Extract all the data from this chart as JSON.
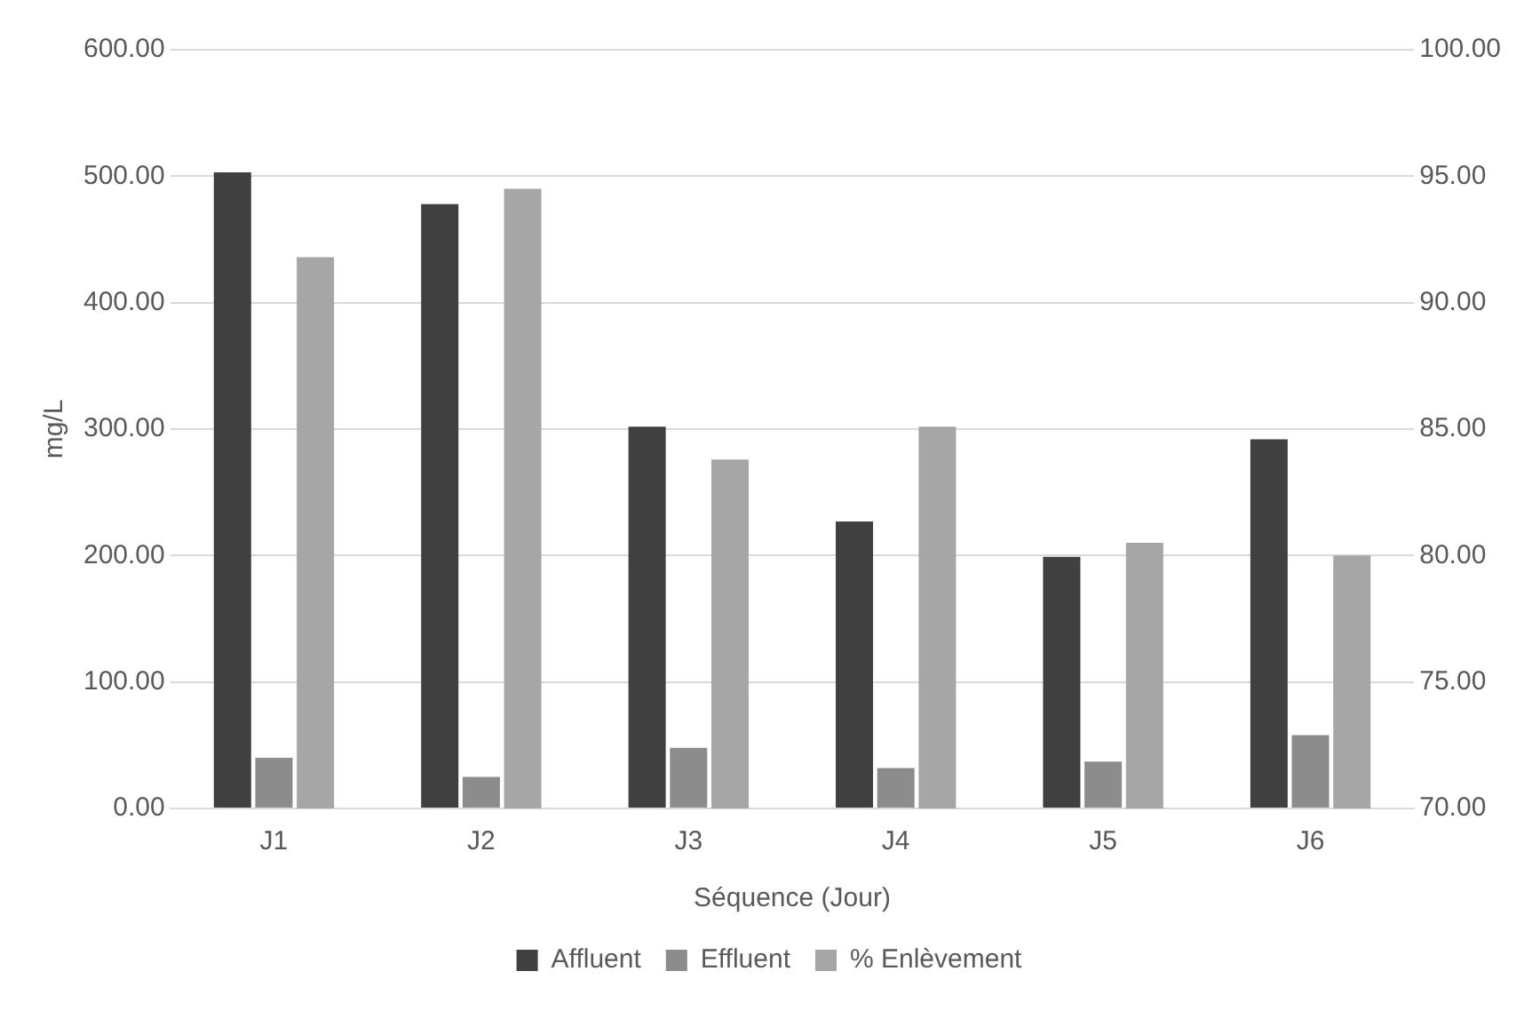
{
  "chart_data": {
    "type": "bar",
    "xlabel": "Séquence (Jour)",
    "ylabel": "mg/L",
    "categories": [
      "J1",
      "J2",
      "J3",
      "J4",
      "J5",
      "J6"
    ],
    "series": [
      {
        "name": "Affluent",
        "color": "#404040",
        "values": [
          503,
          478,
          302,
          227,
          199,
          292
        ]
      },
      {
        "name": "Effluent",
        "color": "#8c8c8c",
        "values": [
          40,
          25,
          48,
          32,
          37,
          58
        ]
      },
      {
        "name": "% Enlèvement",
        "color": "#a6a6a6",
        "axis": "y2",
        "values": [
          91.8,
          94.5,
          83.8,
          85.1,
          80.5,
          80.0
        ]
      }
    ],
    "ylim": [
      0,
      600
    ],
    "yticks": [
      {
        "value": 0,
        "label": "0.00"
      },
      {
        "value": 100,
        "label": "100.00"
      },
      {
        "value": 200,
        "label": "200.00"
      },
      {
        "value": 300,
        "label": "300.00"
      },
      {
        "value": 400,
        "label": "400.00"
      },
      {
        "value": 500,
        "label": "500.00"
      },
      {
        "value": 600,
        "label": "600.00"
      }
    ],
    "y2lim": [
      70,
      100
    ],
    "y2ticks": [
      {
        "value": 70,
        "label": "70.00"
      },
      {
        "value": 75,
        "label": "75.00"
      },
      {
        "value": 80,
        "label": "80.00"
      },
      {
        "value": 85,
        "label": "85.00"
      },
      {
        "value": 90,
        "label": "90.00"
      },
      {
        "value": 95,
        "label": "95.00"
      },
      {
        "value": 100,
        "label": "100.00"
      }
    ],
    "grid": "y",
    "legend": "bottom"
  }
}
